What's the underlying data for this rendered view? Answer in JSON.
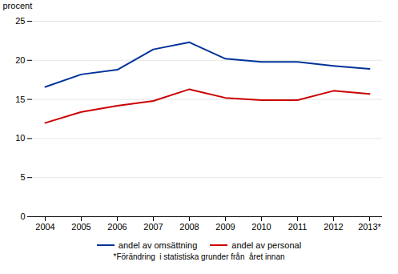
{
  "chart_data": {
    "type": "line",
    "categories": [
      "2004",
      "2005",
      "2006",
      "2007",
      "2008",
      "2009",
      "2010",
      "2011",
      "2012",
      "2013*"
    ],
    "series": [
      {
        "name": "andel av omsättning",
        "color": "#003399",
        "values": [
          16.6,
          18.2,
          18.8,
          21.4,
          22.3,
          20.2,
          19.8,
          19.8,
          19.3,
          18.9
        ]
      },
      {
        "name": "andel av personal",
        "color": "#cc0000",
        "values": [
          12.0,
          13.4,
          14.2,
          14.8,
          16.3,
          15.2,
          14.9,
          14.9,
          16.1,
          15.7
        ]
      }
    ],
    "ylabel": "procent",
    "ylim": [
      0,
      25
    ],
    "yticks": [
      0,
      5,
      10,
      15,
      20,
      25
    ],
    "grid": true,
    "legend": "bottom",
    "annotations": [
      "*Förändring  i statistiska grunder från  året innan"
    ]
  }
}
